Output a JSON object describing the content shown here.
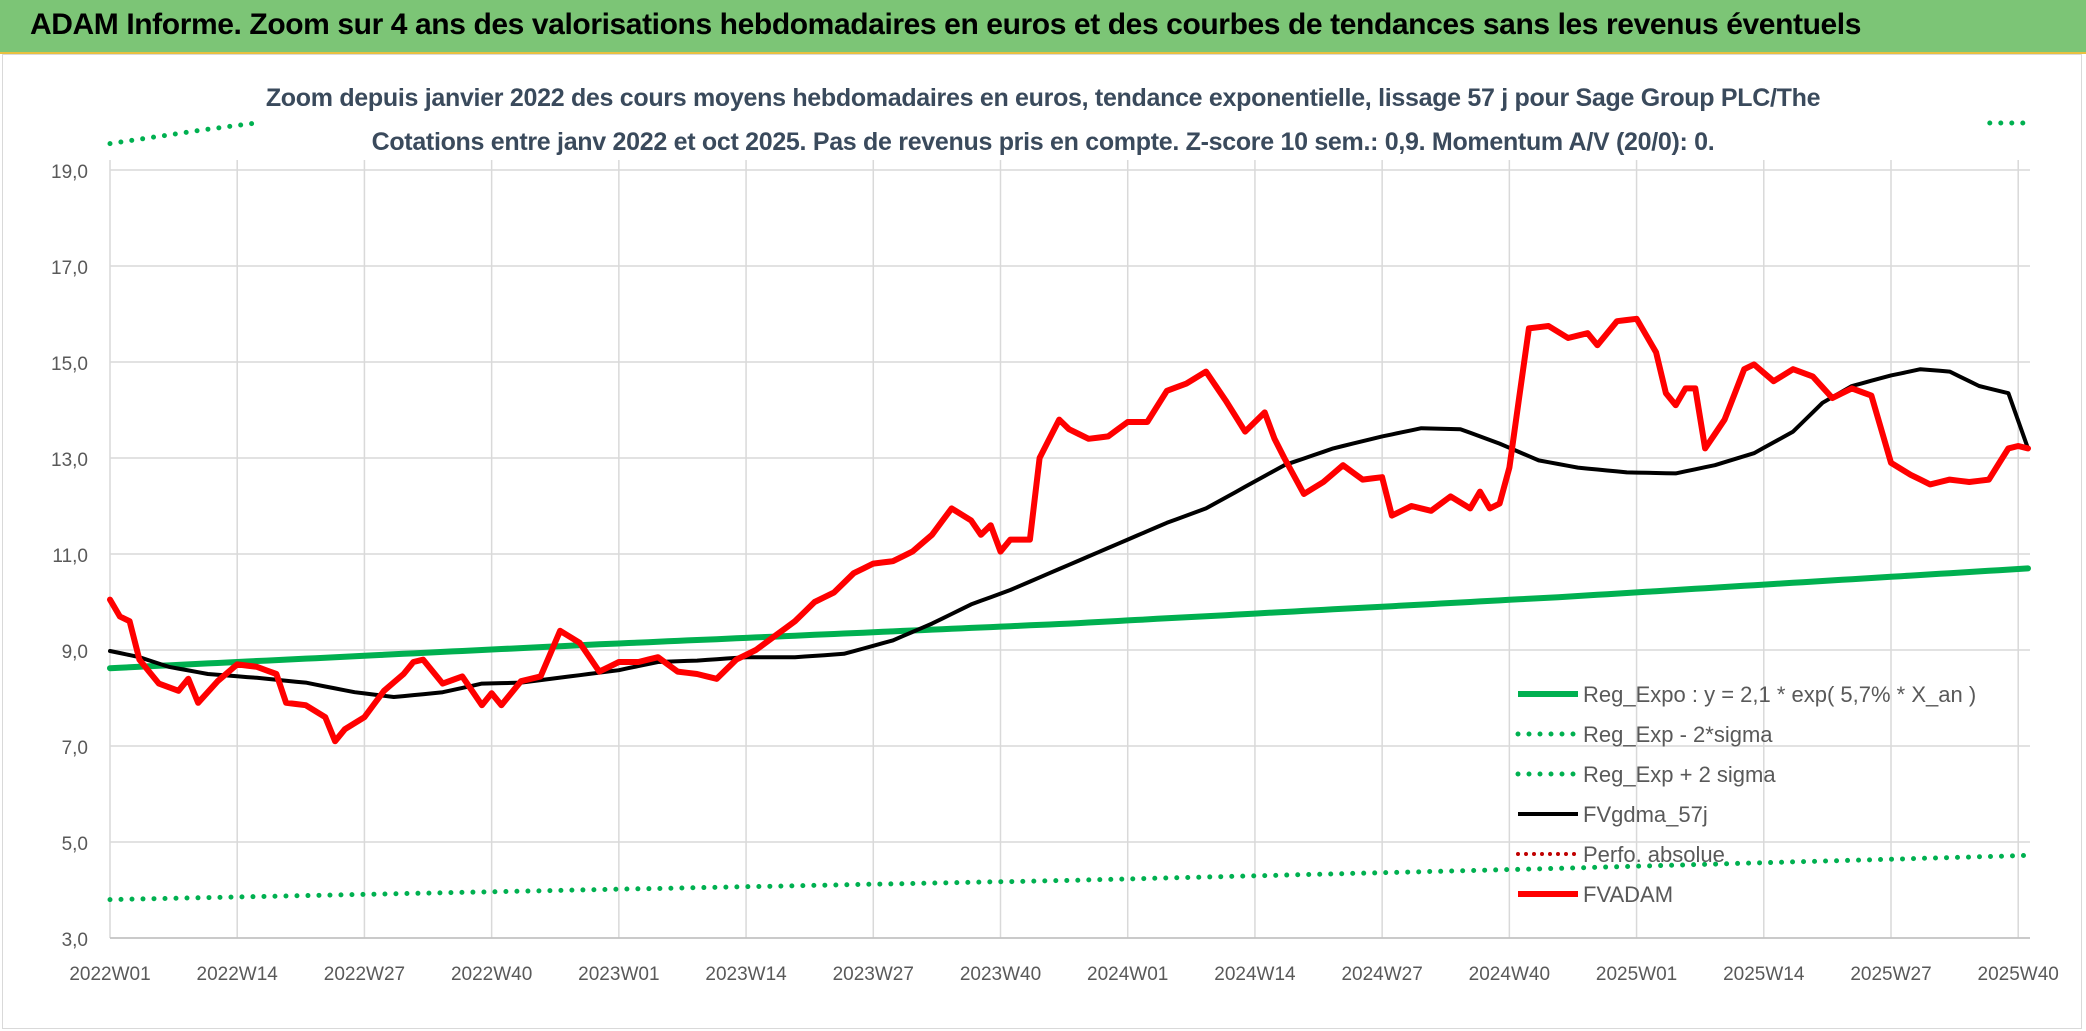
{
  "banner": {
    "title": "ADAM Informe. Zoom sur 4 ans des valorisations hebdomadaires en euros et des courbes de tendances sans les revenus éventuels"
  },
  "colors": {
    "banner_bg": "#7cc576",
    "reg_green": "#00b050",
    "fvadam_red": "#ff0000",
    "gdma_black": "#000000",
    "perfo_red": "#c00000",
    "grid": "#d9d9d9",
    "axis_text": "#595959"
  },
  "chart_data": {
    "type": "line",
    "title": "Zoom depuis janvier 2022 des cours moyens hebdomadaires en euros, tendance exponentielle, lissage 57 j pour Sage Group PLC/The",
    "subtitle": "Cotations entre janv 2022 et oct 2025. Pas de revenus pris en compte. Z-score 10 sem.: 0,9. Momentum A/V (20/0): 0.",
    "xlabel": "",
    "ylabel": "",
    "ylim": [
      3.0,
      19.0
    ],
    "y_ticks": [
      "3,0",
      "5,0",
      "7,0",
      "9,0",
      "11,0",
      "13,0",
      "15,0",
      "17,0",
      "19,0"
    ],
    "x_tick_labels": [
      "2022W01",
      "2022W14",
      "2022W27",
      "2022W40",
      "2023W01",
      "2023W14",
      "2023W27",
      "2023W40",
      "2024W01",
      "2024W14",
      "2024W27",
      "2024W40",
      "2025W01",
      "2025W14",
      "2025W27",
      "2025W40"
    ],
    "n_weeks": 197,
    "series": [
      {
        "name": "Reg_Expo : y = 2,1 * exp( 5,7% *  X_an )",
        "style": "solid-green",
        "knots": [
          [
            0,
            8.62
          ],
          [
            48,
            9.1
          ],
          [
            98,
            9.55
          ],
          [
            148,
            10.1
          ],
          [
            196,
            10.7
          ]
        ]
      },
      {
        "name": "Reg_Exp - 2*sigma",
        "style": "dotted-green",
        "knots": [
          [
            0,
            3.8
          ],
          [
            48,
            4.0
          ],
          [
            98,
            4.2
          ],
          [
            148,
            4.45
          ],
          [
            196,
            4.72
          ]
        ]
      },
      {
        "name": "Reg_Exp + 2 sigma",
        "style": "dotted-green",
        "knots": [
          [
            0,
            19.55
          ],
          [
            5,
            19.7
          ],
          [
            10,
            19.85
          ],
          [
            15,
            19.98
          ],
          [
            15.1,
            null
          ],
          [
            192,
            null
          ],
          [
            192.1,
            19.98
          ],
          [
            196,
            19.98
          ]
        ]
      },
      {
        "name": "FVgdma_57j",
        "style": "solid-black",
        "knots": [
          [
            0,
            8.98
          ],
          [
            3,
            8.85
          ],
          [
            6,
            8.65
          ],
          [
            10,
            8.5
          ],
          [
            15,
            8.42
          ],
          [
            20,
            8.32
          ],
          [
            25,
            8.12
          ],
          [
            29,
            8.02
          ],
          [
            34,
            8.12
          ],
          [
            38,
            8.3
          ],
          [
            42,
            8.32
          ],
          [
            47,
            8.45
          ],
          [
            52,
            8.58
          ],
          [
            56,
            8.75
          ],
          [
            60,
            8.78
          ],
          [
            65,
            8.85
          ],
          [
            70,
            8.85
          ],
          [
            75,
            8.92
          ],
          [
            80,
            9.2
          ],
          [
            84,
            9.55
          ],
          [
            88,
            9.95
          ],
          [
            92,
            10.25
          ],
          [
            96,
            10.6
          ],
          [
            100,
            10.95
          ],
          [
            104,
            11.3
          ],
          [
            108,
            11.65
          ],
          [
            112,
            11.95
          ],
          [
            116,
            12.4
          ],
          [
            120,
            12.85
          ],
          [
            125,
            13.2
          ],
          [
            130,
            13.45
          ],
          [
            134,
            13.62
          ],
          [
            138,
            13.6
          ],
          [
            142,
            13.3
          ],
          [
            146,
            12.95
          ],
          [
            150,
            12.8
          ],
          [
            155,
            12.7
          ],
          [
            160,
            12.68
          ],
          [
            164,
            12.85
          ],
          [
            168,
            13.1
          ],
          [
            172,
            13.55
          ],
          [
            175,
            14.15
          ],
          [
            178,
            14.5
          ],
          [
            182,
            14.72
          ],
          [
            185,
            14.85
          ],
          [
            188,
            14.8
          ],
          [
            191,
            14.5
          ],
          [
            194,
            14.35
          ],
          [
            196,
            13.2
          ]
        ]
      },
      {
        "name": "Perfo. absolue",
        "style": "dotted-red",
        "knots": []
      },
      {
        "name": "FVADAM",
        "style": "solid-red",
        "knots": [
          [
            0,
            10.05
          ],
          [
            1,
            9.7
          ],
          [
            2,
            9.6
          ],
          [
            3,
            8.8
          ],
          [
            5,
            8.3
          ],
          [
            7,
            8.15
          ],
          [
            8,
            8.4
          ],
          [
            9,
            7.9
          ],
          [
            11,
            8.35
          ],
          [
            13,
            8.7
          ],
          [
            15,
            8.65
          ],
          [
            17,
            8.5
          ],
          [
            18,
            7.9
          ],
          [
            20,
            7.85
          ],
          [
            22,
            7.6
          ],
          [
            23,
            7.1
          ],
          [
            24,
            7.35
          ],
          [
            26,
            7.6
          ],
          [
            28,
            8.15
          ],
          [
            30,
            8.5
          ],
          [
            31,
            8.75
          ],
          [
            32,
            8.8
          ],
          [
            34,
            8.3
          ],
          [
            36,
            8.45
          ],
          [
            38,
            7.85
          ],
          [
            39,
            8.1
          ],
          [
            40,
            7.85
          ],
          [
            42,
            8.35
          ],
          [
            44,
            8.45
          ],
          [
            46,
            9.4
          ],
          [
            48,
            9.15
          ],
          [
            50,
            8.55
          ],
          [
            52,
            8.75
          ],
          [
            54,
            8.75
          ],
          [
            56,
            8.85
          ],
          [
            58,
            8.55
          ],
          [
            60,
            8.5
          ],
          [
            62,
            8.4
          ],
          [
            64,
            8.8
          ],
          [
            66,
            9.0
          ],
          [
            68,
            9.3
          ],
          [
            70,
            9.6
          ],
          [
            72,
            10.0
          ],
          [
            74,
            10.2
          ],
          [
            76,
            10.6
          ],
          [
            78,
            10.8
          ],
          [
            80,
            10.85
          ],
          [
            82,
            11.05
          ],
          [
            84,
            11.4
          ],
          [
            86,
            11.95
          ],
          [
            88,
            11.7
          ],
          [
            89,
            11.4
          ],
          [
            90,
            11.6
          ],
          [
            91,
            11.05
          ],
          [
            92,
            11.3
          ],
          [
            94,
            11.3
          ],
          [
            95,
            13.0
          ],
          [
            97,
            13.8
          ],
          [
            98,
            13.6
          ],
          [
            100,
            13.4
          ],
          [
            102,
            13.45
          ],
          [
            104,
            13.75
          ],
          [
            106,
            13.75
          ],
          [
            108,
            14.4
          ],
          [
            110,
            14.55
          ],
          [
            112,
            14.8
          ],
          [
            114,
            14.2
          ],
          [
            116,
            13.55
          ],
          [
            118,
            13.95
          ],
          [
            119,
            13.4
          ],
          [
            120,
            13.0
          ],
          [
            122,
            12.25
          ],
          [
            124,
            12.5
          ],
          [
            126,
            12.85
          ],
          [
            128,
            12.55
          ],
          [
            130,
            12.6
          ],
          [
            131,
            11.8
          ],
          [
            133,
            12.0
          ],
          [
            135,
            11.9
          ],
          [
            137,
            12.2
          ],
          [
            139,
            11.95
          ],
          [
            140,
            12.3
          ],
          [
            141,
            11.95
          ],
          [
            142,
            12.05
          ],
          [
            143,
            12.8
          ],
          [
            145,
            15.7
          ],
          [
            147,
            15.75
          ],
          [
            149,
            15.5
          ],
          [
            151,
            15.6
          ],
          [
            152,
            15.35
          ],
          [
            154,
            15.85
          ],
          [
            156,
            15.9
          ],
          [
            158,
            15.2
          ],
          [
            159,
            14.35
          ],
          [
            160,
            14.1
          ],
          [
            161,
            14.45
          ],
          [
            162,
            14.45
          ],
          [
            163,
            13.2
          ],
          [
            165,
            13.8
          ],
          [
            167,
            14.85
          ],
          [
            168,
            14.95
          ],
          [
            170,
            14.6
          ],
          [
            172,
            14.85
          ],
          [
            174,
            14.7
          ],
          [
            176,
            14.25
          ],
          [
            178,
            14.45
          ],
          [
            180,
            14.3
          ],
          [
            182,
            12.9
          ],
          [
            184,
            12.65
          ],
          [
            186,
            12.45
          ],
          [
            188,
            12.55
          ],
          [
            190,
            12.5
          ],
          [
            192,
            12.55
          ],
          [
            194,
            13.2
          ],
          [
            195,
            13.25
          ],
          [
            196,
            13.2
          ]
        ]
      }
    ],
    "legend": {
      "placement": "right",
      "entries": [
        {
          "label": "Reg_Expo : y = 2,1 * exp( 5,7% *  X_an )",
          "style": "solid-green"
        },
        {
          "label": "Reg_Exp - 2*sigma",
          "style": "dotted-green"
        },
        {
          "label": "Reg_Exp + 2 sigma",
          "style": "dotted-green"
        },
        {
          "label": "FVgdma_57j",
          "style": "solid-black"
        },
        {
          "label": "Perfo. absolue",
          "style": "dotted-red"
        },
        {
          "label": "FVADAM",
          "style": "solid-red"
        }
      ]
    }
  }
}
